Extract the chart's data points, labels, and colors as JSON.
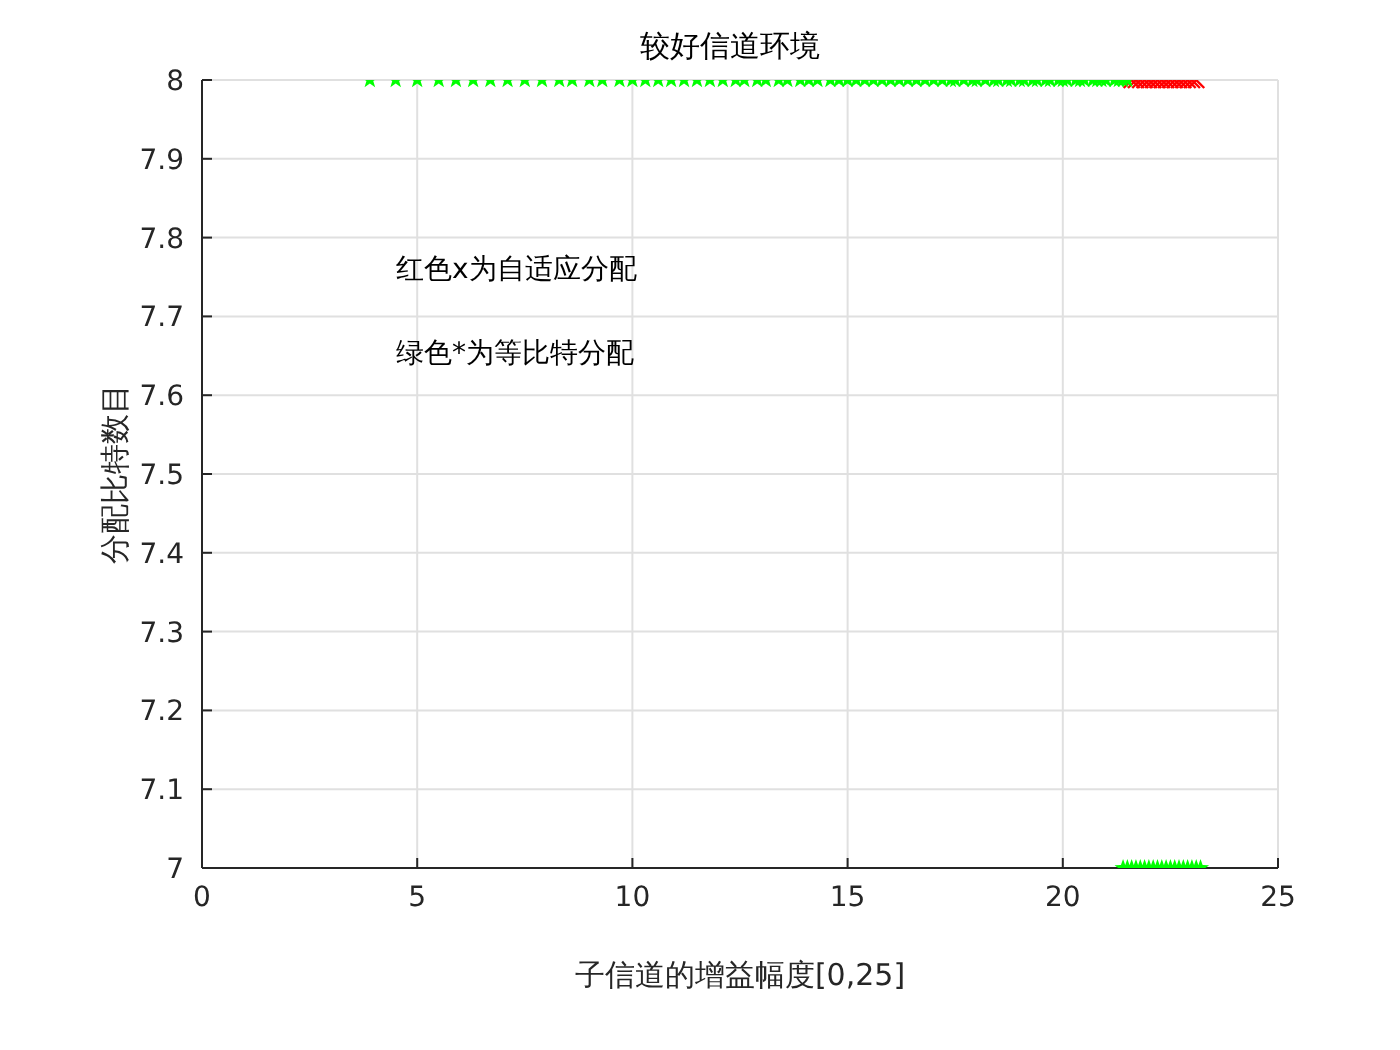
{
  "chart_data": {
    "type": "scatter",
    "title": "较好信道环境",
    "xlabel": "子信道的增益幅度[0,25]",
    "ylabel": "分配比特数目",
    "annotations": [
      "红色x为自适应分配",
      "绿色*为等比特分配"
    ],
    "xlim": [
      0,
      25
    ],
    "xticks": [
      0,
      5,
      10,
      15,
      20,
      25
    ],
    "ylim": [
      7,
      8
    ],
    "yticks": [
      7,
      7.1,
      7.2,
      7.3,
      7.4,
      7.5,
      7.6,
      7.7,
      7.8,
      7.9,
      8
    ],
    "grid": true,
    "legend": false,
    "series": [
      {
        "color": "#ff0000",
        "marker": "cross",
        "x": [
          21.6,
          21.7,
          21.8,
          21.9,
          22.0,
          22.1,
          22.2,
          22.3,
          22.4,
          22.5,
          22.6,
          22.7,
          22.8,
          22.9,
          23.0,
          23.1
        ],
        "values": [
          8,
          8,
          8,
          8,
          8,
          8,
          8,
          8,
          8,
          8,
          8,
          8,
          8,
          8,
          8,
          8
        ]
      },
      {
        "color": "#00ff00",
        "marker": "star",
        "x": [
          3.9,
          4.5,
          5.0,
          5.5,
          5.9,
          6.3,
          6.7,
          7.1,
          7.5,
          7.9,
          8.3,
          8.6,
          9.0,
          9.3,
          9.7,
          10.0,
          10.3,
          10.6,
          10.9,
          11.2,
          11.5,
          11.8,
          12.1,
          12.4,
          12.6,
          12.9,
          13.1,
          13.4,
          13.6,
          13.9,
          14.1,
          14.3,
          14.6,
          14.8,
          15.0,
          15.2,
          15.4,
          15.6,
          15.8,
          16.0,
          16.2,
          16.4,
          16.6,
          16.8,
          17.0,
          17.2,
          17.4,
          17.5,
          17.7,
          17.9,
          18.0,
          18.2,
          18.4,
          18.5,
          18.7,
          18.8,
          19.0,
          19.1,
          19.3,
          19.4,
          19.6,
          19.7,
          19.9,
          20.0,
          20.1,
          20.3,
          20.4,
          20.5,
          20.7,
          20.8,
          20.9,
          21.0,
          21.2,
          21.3,
          21.4,
          21.5,
          21.4,
          21.5,
          21.6,
          21.7,
          21.8,
          21.9,
          22.0,
          22.1,
          22.2,
          22.3,
          22.4,
          22.5,
          22.6,
          22.7,
          22.8,
          22.9,
          23.0,
          23.1,
          23.2
        ],
        "values": [
          8,
          8,
          8,
          8,
          8,
          8,
          8,
          8,
          8,
          8,
          8,
          8,
          8,
          8,
          8,
          8,
          8,
          8,
          8,
          8,
          8,
          8,
          8,
          8,
          8,
          8,
          8,
          8,
          8,
          8,
          8,
          8,
          8,
          8,
          8,
          8,
          8,
          8,
          8,
          8,
          8,
          8,
          8,
          8,
          8,
          8,
          8,
          8,
          8,
          8,
          8,
          8,
          8,
          8,
          8,
          8,
          8,
          8,
          8,
          8,
          8,
          8,
          8,
          8,
          8,
          8,
          8,
          8,
          8,
          8,
          8,
          8,
          8,
          8,
          8,
          8,
          7,
          7,
          7,
          7,
          7,
          7,
          7,
          7,
          7,
          7,
          7,
          7,
          7,
          7,
          7,
          7,
          7,
          7,
          7
        ]
      }
    ]
  }
}
